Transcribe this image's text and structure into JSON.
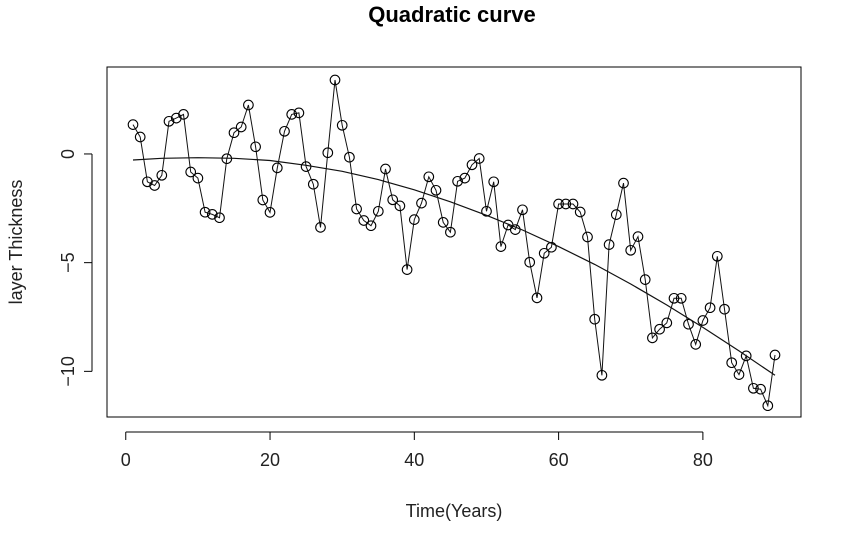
{
  "chart_data": {
    "type": "scatter",
    "title": "Quadratic curve",
    "xlabel": "Time(Years)",
    "ylabel": "layer Thickness",
    "xlim": [
      -2.6,
      93.6
    ],
    "ylim": [
      -12.1,
      4.0
    ],
    "x_ticks": [
      0,
      20,
      40,
      60,
      80
    ],
    "y_ticks": [
      0,
      -5,
      -10
    ],
    "grid": false,
    "legend": "none",
    "series": [
      {
        "style": "points-and-lines",
        "x": [
          1,
          2,
          3,
          4,
          5,
          6,
          7,
          8,
          9,
          10,
          11,
          12,
          13,
          14,
          15,
          16,
          17,
          18,
          19,
          20,
          21,
          22,
          23,
          24,
          25,
          26,
          27,
          28,
          29,
          30,
          31,
          32,
          33,
          34,
          35,
          36,
          37,
          38,
          39,
          40,
          41,
          42,
          43,
          44,
          45,
          46,
          47,
          48,
          49,
          50,
          51,
          52,
          53,
          54,
          55,
          56,
          57,
          58,
          59,
          60,
          61,
          62,
          63,
          64,
          65,
          66,
          67,
          68,
          69,
          70,
          71,
          72,
          73,
          74,
          75,
          76,
          77,
          78,
          79,
          80,
          81,
          82,
          83,
          84,
          85,
          86,
          87,
          88,
          89,
          90
        ],
        "y": [
          1.35,
          0.78,
          -1.28,
          -1.45,
          -0.98,
          1.5,
          1.65,
          1.82,
          -0.83,
          -1.11,
          -2.68,
          -2.78,
          -2.93,
          -0.22,
          0.98,
          1.24,
          2.25,
          0.33,
          -2.12,
          -2.69,
          -0.64,
          1.04,
          1.82,
          1.89,
          -0.58,
          -1.39,
          -3.38,
          0.06,
          3.4,
          1.32,
          -0.15,
          -2.53,
          -3.06,
          -3.3,
          -2.64,
          -0.69,
          -2.11,
          -2.39,
          -5.32,
          -3.02,
          -2.26,
          -1.05,
          -1.67,
          -3.15,
          -3.6,
          -1.26,
          -1.11,
          -0.5,
          -0.21,
          -2.64,
          -1.28,
          -4.26,
          -3.27,
          -3.48,
          -2.57,
          -4.98,
          -6.62,
          -4.57,
          -4.29,
          -2.3,
          -2.3,
          -2.3,
          -2.67,
          -3.82,
          -7.6,
          -10.18,
          -4.17,
          -2.79,
          -1.34,
          -4.43,
          -3.8,
          -5.78,
          -8.46,
          -8.06,
          -7.77,
          -6.64,
          -6.64,
          -7.83,
          -8.76,
          -7.66,
          -7.07,
          -4.71,
          -7.14,
          -9.6,
          -10.15,
          -9.29,
          -10.78,
          -10.82,
          -11.58,
          -9.25
        ]
      },
      {
        "style": "fitted-curve",
        "model": "quadratic",
        "x": [
          1,
          5,
          10,
          15,
          20,
          25,
          30,
          35,
          40,
          45,
          50,
          55,
          60,
          65,
          70,
          75,
          80,
          85,
          90
        ],
        "y": [
          -0.28,
          -0.2,
          -0.17,
          -0.2,
          -0.3,
          -0.52,
          -0.8,
          -1.18,
          -1.65,
          -2.2,
          -2.82,
          -3.5,
          -4.26,
          -5.08,
          -5.98,
          -6.95,
          -7.98,
          -9.06,
          -10.18
        ]
      }
    ]
  }
}
